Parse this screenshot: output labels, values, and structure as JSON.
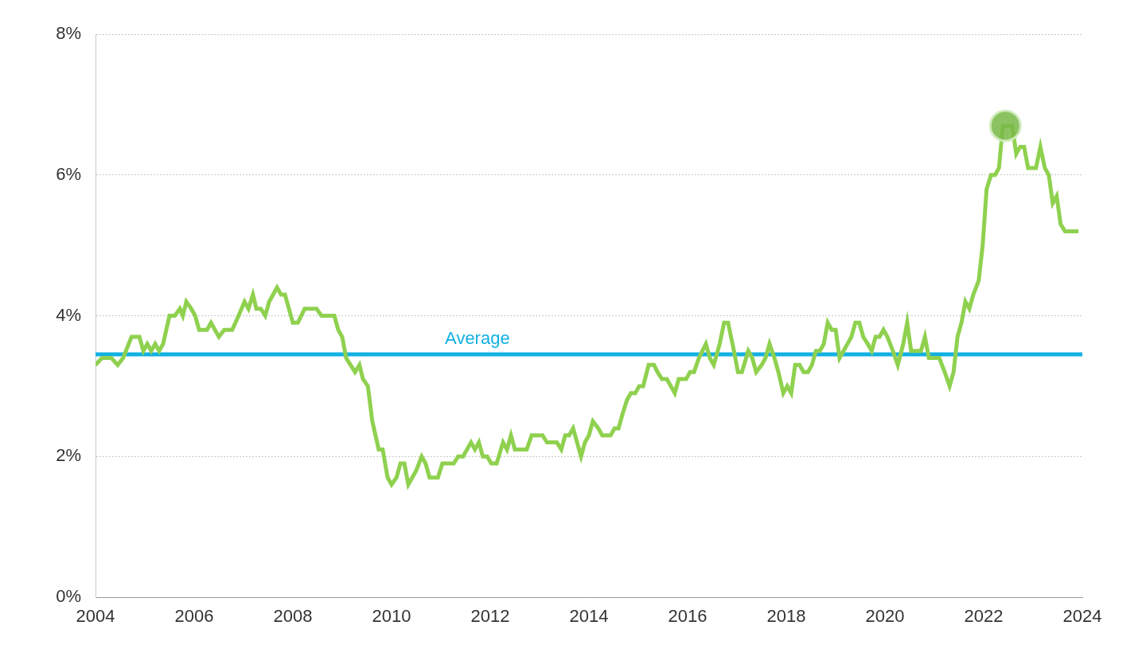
{
  "chart_data": {
    "type": "line",
    "color": "#8fd14f",
    "x": [
      2004.0,
      2004.13,
      2004.32,
      2004.45,
      2004.56,
      2004.73,
      2004.89,
      2004.97,
      2005.05,
      2005.13,
      2005.21,
      2005.29,
      2005.37,
      2005.5,
      2005.61,
      2005.71,
      2005.77,
      2005.84,
      2005.94,
      2006.02,
      2006.1,
      2006.26,
      2006.34,
      2006.5,
      2006.61,
      2006.77,
      2006.9,
      2007.02,
      2007.1,
      2007.19,
      2007.26,
      2007.35,
      2007.44,
      2007.52,
      2007.68,
      2007.76,
      2007.84,
      2008.0,
      2008.1,
      2008.24,
      2008.48,
      2008.58,
      2008.84,
      2008.92,
      2009.0,
      2009.08,
      2009.26,
      2009.35,
      2009.42,
      2009.52,
      2009.61,
      2009.74,
      2009.82,
      2009.92,
      2010.0,
      2010.1,
      2010.18,
      2010.26,
      2010.34,
      2010.42,
      2010.5,
      2010.61,
      2010.69,
      2010.77,
      2010.94,
      2011.03,
      2011.26,
      2011.35,
      2011.45,
      2011.61,
      2011.69,
      2011.77,
      2011.85,
      2011.94,
      2012.02,
      2012.13,
      2012.26,
      2012.34,
      2012.42,
      2012.5,
      2012.74,
      2012.84,
      2013.06,
      2013.15,
      2013.35,
      2013.44,
      2013.52,
      2013.6,
      2013.68,
      2013.84,
      2013.92,
      2014.0,
      2014.08,
      2014.19,
      2014.27,
      2014.44,
      2014.52,
      2014.6,
      2014.68,
      2014.77,
      2014.85,
      2014.94,
      2015.02,
      2015.1,
      2015.21,
      2015.32,
      2015.39,
      2015.48,
      2015.58,
      2015.66,
      2015.74,
      2015.82,
      2015.97,
      2016.05,
      2016.13,
      2016.23,
      2016.37,
      2016.45,
      2016.53,
      2016.65,
      2016.74,
      2016.82,
      2016.94,
      2017.02,
      2017.1,
      2017.23,
      2017.31,
      2017.39,
      2017.5,
      2017.58,
      2017.66,
      2017.76,
      2017.84,
      2017.94,
      2018.02,
      2018.1,
      2018.18,
      2018.27,
      2018.35,
      2018.44,
      2018.52,
      2018.6,
      2018.68,
      2018.76,
      2018.84,
      2018.92,
      2019.0,
      2019.08,
      2019.16,
      2019.24,
      2019.32,
      2019.4,
      2019.48,
      2019.56,
      2019.65,
      2019.73,
      2019.81,
      2019.89,
      2019.97,
      2020.05,
      2020.16,
      2020.26,
      2020.37,
      2020.45,
      2020.53,
      2020.61,
      2020.73,
      2020.81,
      2020.89,
      2021.1,
      2021.21,
      2021.31,
      2021.39,
      2021.47,
      2021.55,
      2021.63,
      2021.71,
      2021.79,
      2021.9,
      2021.98,
      2022.06,
      2022.15,
      2022.23,
      2022.31,
      2022.39,
      2022.47,
      2022.58,
      2022.66,
      2022.74,
      2022.82,
      2022.9,
      2023.06,
      2023.15,
      2023.24,
      2023.32,
      2023.4,
      2023.48,
      2023.56,
      2023.65,
      2023.92
    ],
    "values": [
      3.3,
      3.4,
      3.4,
      3.3,
      3.4,
      3.7,
      3.7,
      3.5,
      3.6,
      3.5,
      3.6,
      3.5,
      3.6,
      4.0,
      4.0,
      4.1,
      4.0,
      4.2,
      4.1,
      4.0,
      3.8,
      3.8,
      3.9,
      3.7,
      3.8,
      3.8,
      4.0,
      4.2,
      4.1,
      4.3,
      4.1,
      4.1,
      4.0,
      4.2,
      4.4,
      4.3,
      4.3,
      3.9,
      3.9,
      4.1,
      4.1,
      4.0,
      4.0,
      3.8,
      3.7,
      3.4,
      3.2,
      3.3,
      3.1,
      3.0,
      2.5,
      2.1,
      2.1,
      1.7,
      1.6,
      1.7,
      1.9,
      1.9,
      1.6,
      1.7,
      1.8,
      2.0,
      1.9,
      1.7,
      1.7,
      1.9,
      1.9,
      2.0,
      2.0,
      2.2,
      2.1,
      2.2,
      2.0,
      2.0,
      1.9,
      1.9,
      2.2,
      2.1,
      2.3,
      2.1,
      2.1,
      2.3,
      2.3,
      2.2,
      2.2,
      2.1,
      2.3,
      2.3,
      2.4,
      2.0,
      2.2,
      2.3,
      2.5,
      2.4,
      2.3,
      2.3,
      2.4,
      2.4,
      2.6,
      2.8,
      2.9,
      2.9,
      3.0,
      3.0,
      3.3,
      3.3,
      3.2,
      3.1,
      3.1,
      3.0,
      2.9,
      3.1,
      3.1,
      3.2,
      3.2,
      3.4,
      3.6,
      3.4,
      3.3,
      3.6,
      3.9,
      3.9,
      3.5,
      3.2,
      3.2,
      3.5,
      3.4,
      3.2,
      3.3,
      3.4,
      3.6,
      3.4,
      3.2,
      2.9,
      3.0,
      2.9,
      3.3,
      3.3,
      3.2,
      3.2,
      3.3,
      3.5,
      3.5,
      3.6,
      3.9,
      3.8,
      3.8,
      3.4,
      3.5,
      3.6,
      3.7,
      3.9,
      3.9,
      3.7,
      3.6,
      3.5,
      3.7,
      3.7,
      3.8,
      3.7,
      3.5,
      3.3,
      3.6,
      3.9,
      3.5,
      3.5,
      3.5,
      3.7,
      3.4,
      3.4,
      3.2,
      3.0,
      3.2,
      3.7,
      3.9,
      4.2,
      4.1,
      4.3,
      4.5,
      5.0,
      5.8,
      6.0,
      6.0,
      6.1,
      6.7,
      6.7,
      6.7,
      6.3,
      6.4,
      6.4,
      6.1,
      6.1,
      6.4,
      6.1,
      6.0,
      5.6,
      5.7,
      5.3,
      5.2,
      5.2
    ],
    "reference_lines": [
      {
        "value": 3.45,
        "label": "Average",
        "color": "#12b0e3"
      }
    ],
    "highlight": {
      "x": 2022.44,
      "y": 6.7
    },
    "xlim": [
      2004,
      2024
    ],
    "xticks": [
      2004,
      2006,
      2008,
      2010,
      2012,
      2014,
      2016,
      2018,
      2020,
      2022,
      2024
    ],
    "ylim": [
      0,
      8
    ],
    "yticks": [
      {
        "value": 0,
        "label": "0%"
      },
      {
        "value": 2,
        "label": "2%"
      },
      {
        "value": 4,
        "label": "4%"
      },
      {
        "value": 6,
        "label": "6%"
      },
      {
        "value": 8,
        "label": "8%"
      }
    ],
    "grid": true
  }
}
